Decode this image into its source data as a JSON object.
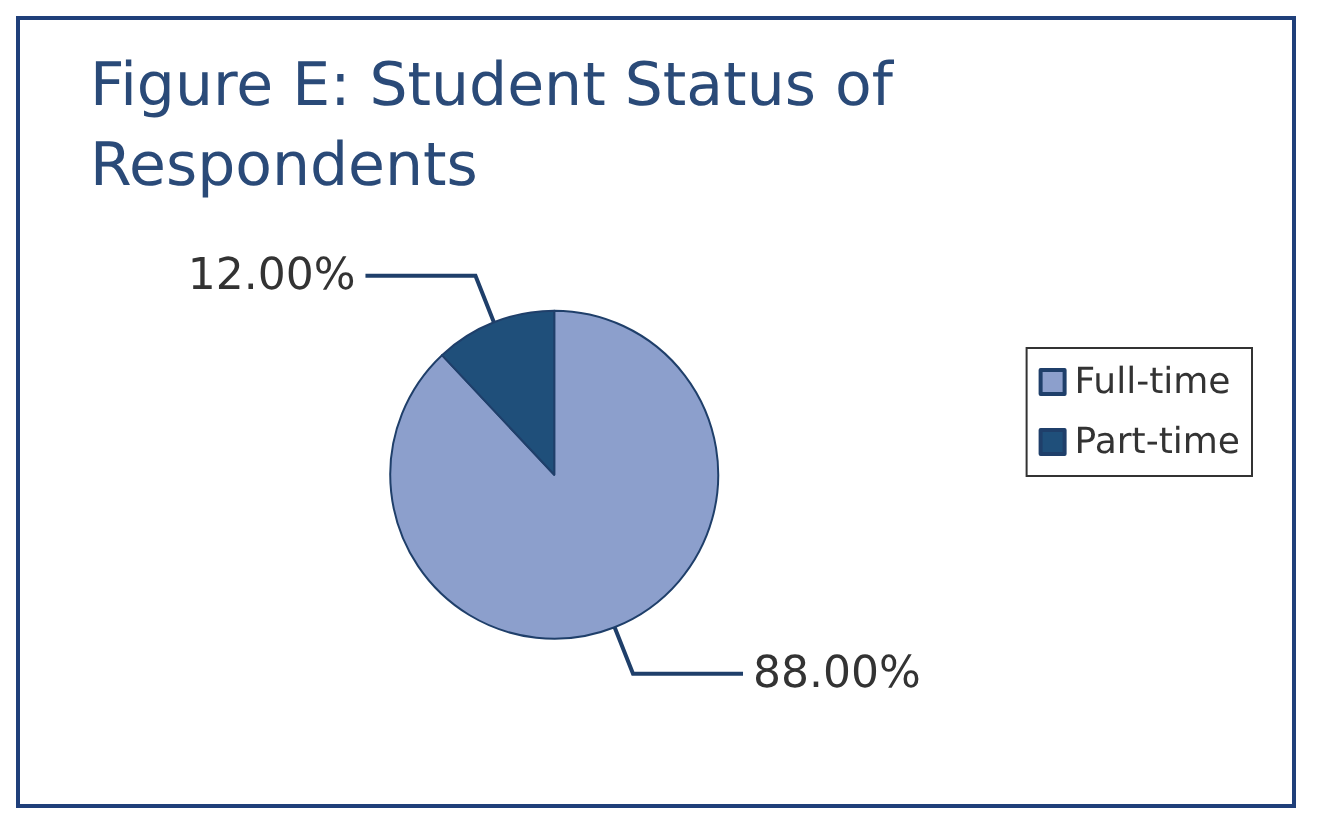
{
  "chart_data": {
    "type": "pie",
    "title": "Figure E: Student Status of\nRespondents",
    "categories": [
      "Full-time",
      "Part-time"
    ],
    "values": [
      88,
      12
    ],
    "colors": [
      "#8c9fcc",
      "#1f4f7a"
    ],
    "value_labels": [
      "88.00%",
      "12.00%"
    ],
    "legend": "right"
  }
}
